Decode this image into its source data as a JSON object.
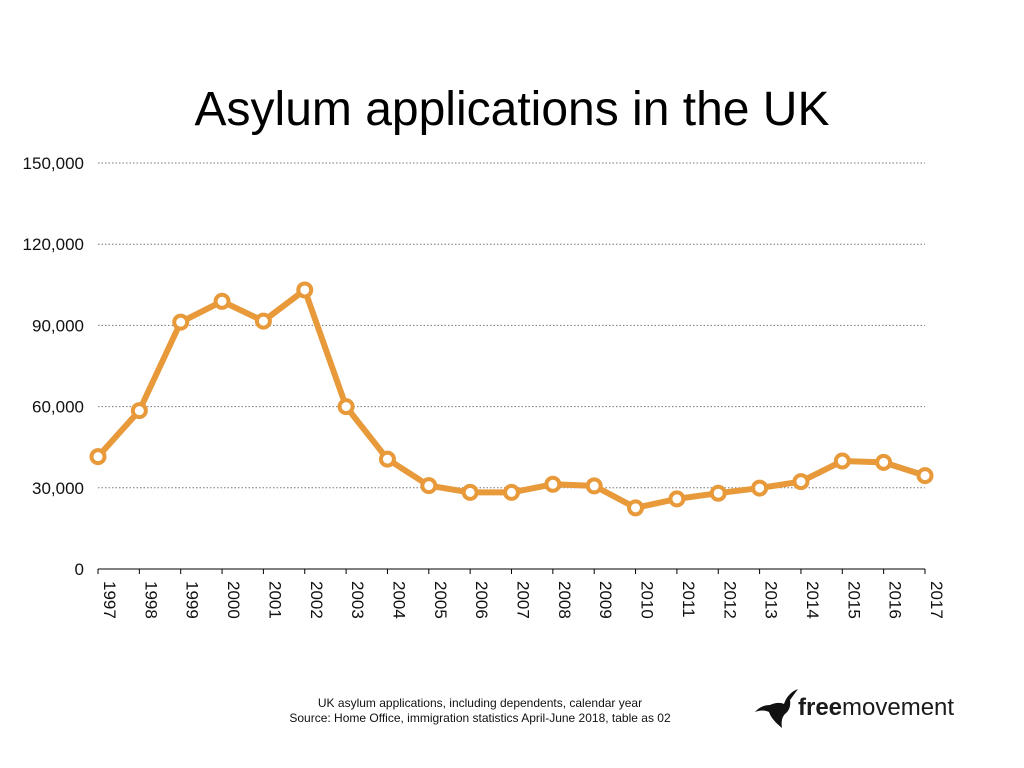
{
  "chart_data": {
    "type": "line",
    "title": "Asylum applications in the UK",
    "x": [
      "1997",
      "1998",
      "1999",
      "2000",
      "2001",
      "2002",
      "2003",
      "2004",
      "2005",
      "2006",
      "2007",
      "2008",
      "2009",
      "2010",
      "2011",
      "2012",
      "2013",
      "2014",
      "2015",
      "2016",
      "2017"
    ],
    "series": [
      {
        "values": [
          41500,
          58500,
          91200,
          98900,
          91600,
          103100,
          60000,
          40600,
          30800,
          28300,
          28300,
          31300,
          30700,
          22600,
          25900,
          28000,
          29900,
          32300,
          39900,
          39400,
          34500
        ]
      }
    ],
    "ylim": [
      0,
      150000
    ],
    "yticks": [
      0,
      30000,
      60000,
      90000,
      120000,
      150000
    ],
    "ytick_labels": [
      "0",
      "30,000",
      "60,000",
      "90,000",
      "120,000",
      "150,000"
    ],
    "grid": true,
    "line_color": "#E8993A",
    "caption_line1": "UK asylum applications, including dependents, calendar year",
    "caption_line2": "Source: Home Office, immigration statistics April-June 2018, table as 02"
  },
  "logo": {
    "bold": "free",
    "regular": "movement"
  }
}
